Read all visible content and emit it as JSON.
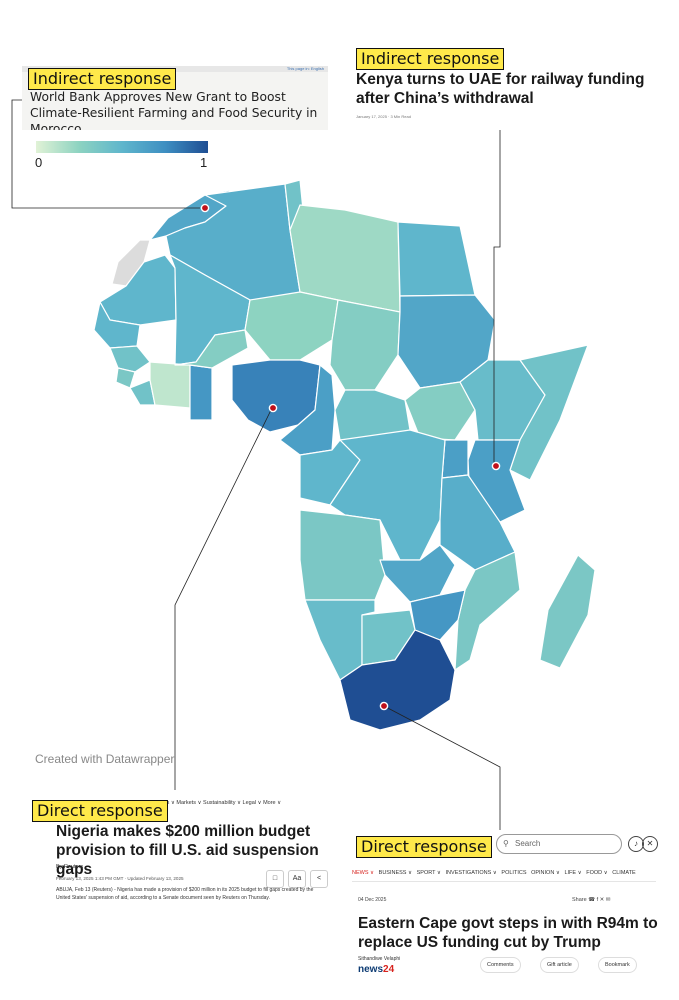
{
  "chart_data": {
    "type": "choropleth",
    "legend": {
      "min_label": "0",
      "max_label": "1",
      "colors": [
        "#e1f2d6",
        "#8dd3c1",
        "#5fb6cc",
        "#3e8fc2",
        "#1f4e93"
      ]
    },
    "credit": "Created with Datawrapper",
    "regions": [
      {
        "name": "Morocco",
        "value": 0.6
      },
      {
        "name": "Western Sahara",
        "value": null
      },
      {
        "name": "Algeria",
        "value": 0.55
      },
      {
        "name": "Tunisia",
        "value": 0.4
      },
      {
        "name": "Libya",
        "value": 0.2
      },
      {
        "name": "Egypt",
        "value": 0.5
      },
      {
        "name": "Mauritania",
        "value": 0.5
      },
      {
        "name": "Mali",
        "value": 0.5
      },
      {
        "name": "Niger",
        "value": 0.25
      },
      {
        "name": "Chad",
        "value": 0.3
      },
      {
        "name": "Sudan",
        "value": 0.6
      },
      {
        "name": "Senegal",
        "value": 0.5
      },
      {
        "name": "Guinea",
        "value": 0.4
      },
      {
        "name": "Sierra Leone",
        "value": 0.35
      },
      {
        "name": "Liberia",
        "value": 0.4
      },
      {
        "name": "Cote d'Ivoire",
        "value": 0.1
      },
      {
        "name": "Ghana",
        "value": 0.7
      },
      {
        "name": "Burkina Faso",
        "value": 0.3
      },
      {
        "name": "Nigeria",
        "value": 0.8
      },
      {
        "name": "Cameroon",
        "value": 0.65
      },
      {
        "name": "Central African Republic",
        "value": 0.4
      },
      {
        "name": "South Sudan",
        "value": 0.3
      },
      {
        "name": "Ethiopia",
        "value": 0.45
      },
      {
        "name": "Somalia",
        "value": 0.4
      },
      {
        "name": "Kenya",
        "value": 0.65
      },
      {
        "name": "Uganda",
        "value": 0.65
      },
      {
        "name": "Congo",
        "value": 0.5
      },
      {
        "name": "DR Congo",
        "value": 0.5
      },
      {
        "name": "Tanzania",
        "value": 0.55
      },
      {
        "name": "Angola",
        "value": 0.35
      },
      {
        "name": "Zambia",
        "value": 0.6
      },
      {
        "name": "Mozambique",
        "value": 0.35
      },
      {
        "name": "Zimbabwe",
        "value": 0.7
      },
      {
        "name": "Namibia",
        "value": 0.45
      },
      {
        "name": "Botswana",
        "value": 0.4
      },
      {
        "name": "South Africa",
        "value": 1.0
      },
      {
        "name": "Madagascar",
        "value": 0.35
      }
    ],
    "highlights": [
      {
        "country": "Morocco",
        "label": "Indirect response",
        "headline": "World Bank Approves New Grant to Boost Climate-Resilient Farming and Food Security in Morocco"
      },
      {
        "country": "Kenya",
        "label": "Indirect response",
        "headline": "Kenya turns to UAE for railway funding after China’s withdrawal"
      },
      {
        "country": "Nigeria",
        "label": "Direct response",
        "headline": "Nigeria makes $200 million budget provision to fill U.S. aid suspension gaps"
      },
      {
        "country": "South Africa",
        "label": "Direct response",
        "headline": "Eastern Cape govt steps in with R94m to replace US funding cut by Trump"
      }
    ]
  },
  "morocco_card": {
    "label": "Indirect response",
    "headline": "World Bank Approves New Grant to Boost Climate-Resilient Farming and Food Security in Morocco",
    "strip_text": "This page in: English"
  },
  "kenya_card": {
    "label": "Indirect response",
    "headline": "Kenya turns to UAE for railway funding after China’s withdrawal",
    "meta": "January 17, 2025 · 3 Min Read"
  },
  "reuters_card": {
    "label": "Direct response",
    "nav": "Business ∨   Markets ∨   Sustainability ∨   Legal ∨   More ∨",
    "headline": "Nigeria makes $200 million budget provision to fill U.S. aid suspension gaps",
    "byline": "By Reuters",
    "date": "February 13, 2025 1:43 PM GMT · Updated February 13, 2025",
    "body": "ABUJA, Feb 13 (Reuters) - Nigeria has made a provision of $200 million in its 2025 budget to fill gaps created by the United States' suspension of aid, according to a Senate document seen by Reuters on Thursday.",
    "btn_text_size": "Aa"
  },
  "news24_card": {
    "label": "Direct response",
    "search_placeholder": "Search",
    "nav": [
      "NEWS ∨",
      "BUSINESS ∨",
      "SPORT ∨",
      "INVESTIGATIONS ∨",
      "POLITICS",
      "OPINION ∨",
      "LIFE ∨",
      "FOOD ∨",
      "CLIMATE"
    ],
    "date": "04 Dec 2025",
    "share": "Share",
    "headline": "Eastern Cape govt steps in with R94m to replace US funding cut by Trump",
    "author": "Sithandiwe Velaphi",
    "logo_text": "news",
    "logo_num": "24",
    "comments": "Comments",
    "gift": "Gift article",
    "bookmark": "Bookmark"
  }
}
